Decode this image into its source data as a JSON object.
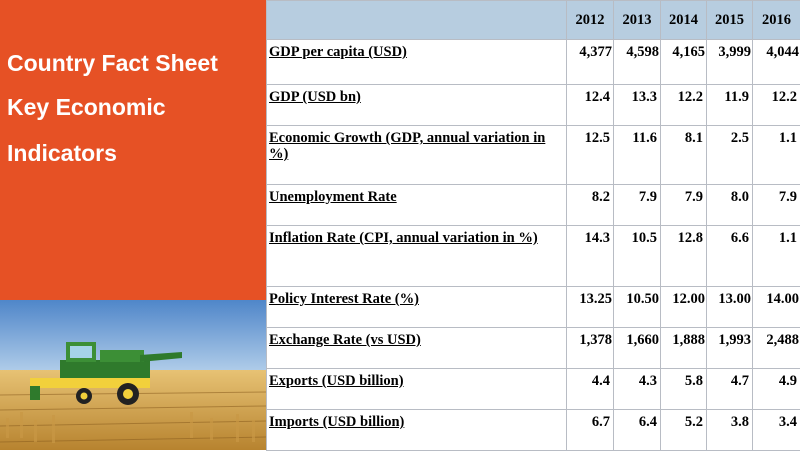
{
  "title": {
    "line1": "Country Fact Sheet",
    "line2": "Key Economic",
    "line3": "Indicators"
  },
  "colors": {
    "accent": "#e65125",
    "header_bg": "#b7cde0",
    "border": "#b8bcc4"
  },
  "image": {
    "icon": "combine-harvester-photo"
  },
  "table": {
    "years": [
      "2012",
      "2013",
      "2014",
      "2015",
      "2016"
    ],
    "rows": [
      {
        "label": "GDP per capita (USD)",
        "values": [
          "4,377",
          "4,598",
          "4,165",
          "3,999",
          "4,044"
        ]
      },
      {
        "label": "GDP (USD bn)",
        "values": [
          "12.4",
          "13.3",
          "12.2",
          "11.9",
          "12.2"
        ]
      },
      {
        "label": "Economic Growth (GDP, annual variation in %)",
        "values": [
          "12.5",
          "11.6",
          "8.1",
          "2.5",
          "1.1"
        ]
      },
      {
        "label": "Unemployment Rate",
        "values": [
          "8.2",
          "7.9",
          "7.9",
          "8.0",
          "7.9"
        ]
      },
      {
        "label": "Inflation Rate (CPI, annual variation in %)",
        "values": [
          "14.3",
          "10.5",
          "12.8",
          "6.6",
          "1.1"
        ]
      },
      {
        "label": "Policy Interest Rate (%)",
        "values": [
          "13.25",
          "10.50",
          "12.00",
          "13.00",
          "14.00"
        ]
      },
      {
        "label": "Exchange Rate (vs USD)",
        "values": [
          "1,378",
          "1,660",
          "1,888",
          "1,993",
          "2,488"
        ]
      },
      {
        "label": "Exports (USD billion)",
        "values": [
          "4.4",
          "4.3",
          "5.8",
          "4.7",
          "4.9"
        ]
      },
      {
        "label": "Imports (USD billion)",
        "values": [
          "6.7",
          "6.4",
          "5.2",
          "3.8",
          "3.4"
        ]
      }
    ]
  }
}
